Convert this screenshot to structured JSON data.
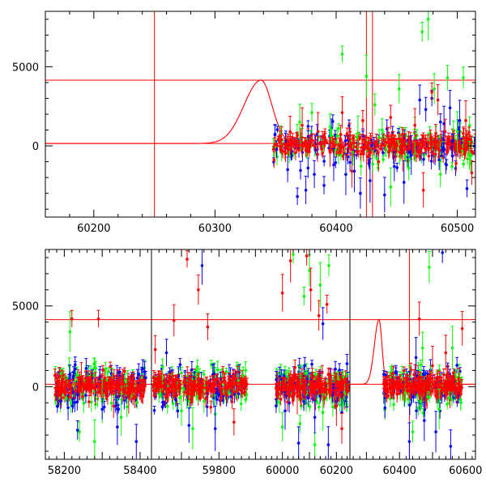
{
  "chart_data": [
    {
      "type": "scatter",
      "title": "",
      "xlabel": "",
      "ylabel": "",
      "xlim": [
        60160,
        60515
      ],
      "ylim": [
        -4500,
        8500
      ],
      "x_ticks": [
        60200,
        60300,
        60400,
        60500
      ],
      "y_ticks": [
        0,
        5000
      ],
      "grid": false,
      "vertical_lines": [
        60250,
        60425,
        60430
      ],
      "horizontal_lines": [
        4150,
        150
      ],
      "model_curve": {
        "peak_x": 60338,
        "peak_y": 4150,
        "baseline_y": 150
      },
      "series": [
        {
          "color": "#00ff00",
          "points": [
            [
              60370,
              1500
            ],
            [
              60380,
              2100
            ],
            [
              60395,
              1200
            ],
            [
              60405,
              5800
            ],
            [
              60418,
              800
            ],
            [
              60425,
              4400
            ],
            [
              60432,
              2600
            ],
            [
              60438,
              1000
            ],
            [
              60445,
              -2600
            ],
            [
              60452,
              3600
            ],
            [
              60460,
              -1400
            ],
            [
              60465,
              500
            ],
            [
              60471,
              7200
            ],
            [
              60476,
              8000
            ],
            [
              60481,
              3600
            ],
            [
              60486,
              -1800
            ],
            [
              60492,
              4300
            ],
            [
              60500,
              900
            ],
            [
              60505,
              4300
            ],
            [
              60510,
              -600
            ]
          ]
        },
        {
          "color": "#0000ff",
          "points": [
            [
              60360,
              -1500
            ],
            [
              60368,
              -3200
            ],
            [
              60375,
              -2800
            ],
            [
              60382,
              -1800
            ],
            [
              60390,
              -2500
            ],
            [
              60398,
              -1200
            ],
            [
              60408,
              -1800
            ],
            [
              60415,
              -1600
            ],
            [
              60420,
              -3000
            ],
            [
              60428,
              -2200
            ],
            [
              60440,
              -3100
            ],
            [
              60448,
              -1300
            ],
            [
              60456,
              -2300
            ],
            [
              60462,
              -600
            ],
            [
              60469,
              2900
            ],
            [
              60474,
              2300
            ],
            [
              60479,
              3000
            ],
            [
              60489,
              1400
            ],
            [
              60494,
              2400
            ],
            [
              60502,
              1600
            ],
            [
              60508,
              -2700
            ]
          ]
        },
        {
          "color": "#ff0000",
          "points": [
            [
              60355,
              400
            ],
            [
              60362,
              900
            ],
            [
              60372,
              1300
            ],
            [
              60385,
              900
            ],
            [
              60395,
              -400
            ],
            [
              60405,
              2100
            ],
            [
              60413,
              -1600
            ],
            [
              60422,
              1600
            ],
            [
              60435,
              -1000
            ],
            [
              60445,
              1800
            ],
            [
              60455,
              -300
            ],
            [
              60465,
              1300
            ],
            [
              60472,
              -2800
            ],
            [
              60479,
              3400
            ],
            [
              60484,
              2900
            ],
            [
              60490,
              900
            ],
            [
              60499,
              -1100
            ],
            [
              60507,
              1600
            ],
            [
              60512,
              -1700
            ]
          ]
        }
      ],
      "dense_band": {
        "x_range": [
          60348,
          60515
        ],
        "y_center": 0
      }
    },
    {
      "type": "scatter",
      "title": "",
      "xlabel": "",
      "ylabel": "",
      "broken_x_axis": true,
      "ylim": [
        -4500,
        8500
      ],
      "y_ticks": [
        0,
        5000
      ],
      "x_ticks": [
        58200,
        58400,
        59800,
        60000,
        60200,
        60400,
        60600
      ],
      "segments": [
        {
          "xlim": [
            58150,
            58430
          ]
        },
        {
          "xlim": [
            59620,
            59890
          ]
        },
        {
          "xlim": [
            59890,
            60630
          ]
        }
      ],
      "vertical_lines": [
        60250,
        60430
      ],
      "horizontal_lines": [
        4150,
        150
      ],
      "model_curve": {
        "peak_x": 60338,
        "peak_y": 4150,
        "baseline_y": 150
      },
      "series": [
        {
          "color": "#00ff00",
          "points": [
            [
              58215,
              3400
            ],
            [
              58240,
              -2800
            ],
            [
              58280,
              -3400
            ],
            [
              58300,
              -900
            ],
            [
              58350,
              -1900
            ],
            [
              59700,
              -1500
            ],
            [
              59730,
              -2600
            ],
            [
              59760,
              -900
            ],
            [
              59790,
              -1700
            ],
            [
              60000,
              -2500
            ],
            [
              60040,
              8200
            ],
            [
              60065,
              -2300
            ],
            [
              60080,
              5600
            ],
            [
              60100,
              7200
            ],
            [
              60120,
              -3600
            ],
            [
              60140,
              6300
            ],
            [
              60150,
              -1600
            ],
            [
              60172,
              7500
            ],
            [
              60440,
              -2800
            ],
            [
              60470,
              2400
            ],
            [
              60490,
              7400
            ],
            [
              60520,
              -1400
            ],
            [
              60560,
              2400
            ]
          ]
        },
        {
          "color": "#0000ff",
          "points": [
            [
              58210,
              -1300
            ],
            [
              58235,
              -2700
            ],
            [
              58300,
              -1400
            ],
            [
              58340,
              -2500
            ],
            [
              58390,
              -3400
            ],
            [
              59660,
              2100
            ],
            [
              59720,
              -2400
            ],
            [
              59755,
              7500
            ],
            [
              59790,
              -2600
            ],
            [
              60010,
              -1500
            ],
            [
              60060,
              -3500
            ],
            [
              60120,
              -1900
            ],
            [
              60150,
              3900
            ],
            [
              60170,
              -3600
            ],
            [
              60200,
              -900
            ],
            [
              60220,
              -1600
            ],
            [
              60430,
              -3400
            ],
            [
              60450,
              1800
            ],
            [
              60475,
              -2100
            ],
            [
              60510,
              -2800
            ],
            [
              60530,
              8300
            ],
            [
              60555,
              -3700
            ]
          ]
        },
        {
          "color": "#ff0000",
          "points": [
            [
              58220,
              4200
            ],
            [
              58245,
              600
            ],
            [
              58290,
              4200
            ],
            [
              58330,
              -1200
            ],
            [
              58370,
              -600
            ],
            [
              59630,
              2300
            ],
            [
              59680,
              4100
            ],
            [
              59715,
              7900
            ],
            [
              59745,
              6000
            ],
            [
              59770,
              3700
            ],
            [
              59840,
              -2200
            ],
            [
              60000,
              5800
            ],
            [
              60030,
              7800
            ],
            [
              60055,
              -600
            ],
            [
              60090,
              8100
            ],
            [
              60105,
              6000
            ],
            [
              60135,
              4400
            ],
            [
              60165,
              5100
            ],
            [
              60200,
              -1200
            ],
            [
              60220,
              -2600
            ],
            [
              60460,
              4200
            ],
            [
              60480,
              -800
            ],
            [
              60500,
              1300
            ],
            [
              60540,
              2100
            ],
            [
              60590,
              3600
            ]
          ]
        }
      ],
      "dense_bands": [
        {
          "x_range": [
            58175,
            58415
          ],
          "y_center": 0
        },
        {
          "x_range": [
            59625,
            59875
          ],
          "y_center": 0
        },
        {
          "x_range": [
            59975,
            60245
          ],
          "y_center": 0
        },
        {
          "x_range": [
            60352,
            60590
          ],
          "y_center": 0
        }
      ]
    }
  ]
}
